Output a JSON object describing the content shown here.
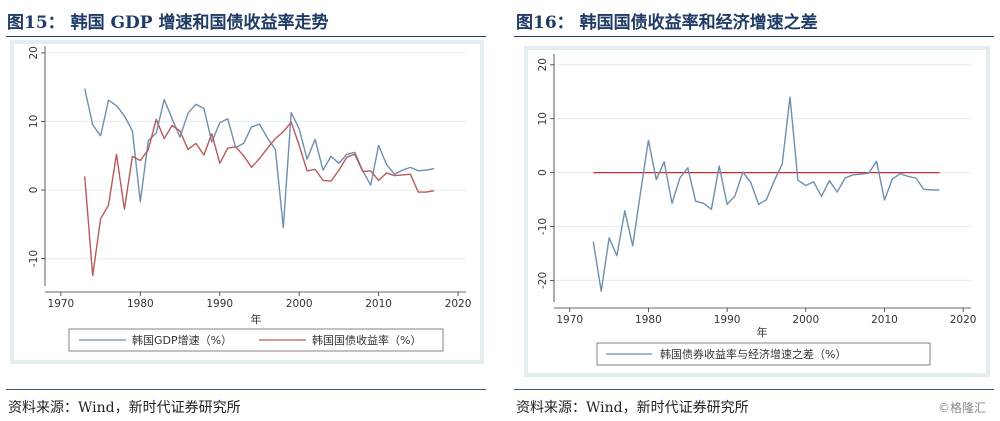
{
  "charts": [
    {
      "title": "图15：  韩国 GDP 增速和国债收益率走势",
      "source": "资料来源：Wind，新时代证券研究所"
    },
    {
      "title": "图16：  韩国国债收益率和经济增速之差",
      "source": "资料来源：Wind，新时代证券研究所"
    }
  ],
  "watermark": "©格隆汇",
  "colors": {
    "blue": "#6e8fb0",
    "red": "#b85a5a",
    "axis": "#333333",
    "frame": "#eaf2f3"
  },
  "chart_data": [
    {
      "type": "line",
      "xlabel": "年",
      "ylabel": "",
      "xlim": [
        1968,
        2021
      ],
      "ylim": [
        -14,
        21
      ],
      "xticks": [
        1970,
        1980,
        1990,
        2000,
        2010,
        2020
      ],
      "yticks": [
        -10,
        0,
        10,
        20
      ],
      "legend_position": "bottom",
      "x": [
        1973,
        1974,
        1975,
        1976,
        1977,
        1978,
        1979,
        1980,
        1981,
        1982,
        1983,
        1984,
        1985,
        1986,
        1987,
        1988,
        1989,
        1990,
        1991,
        1992,
        1993,
        1994,
        1995,
        1996,
        1997,
        1998,
        1999,
        2000,
        2001,
        2002,
        2003,
        2004,
        2005,
        2006,
        2007,
        2008,
        2009,
        2010,
        2011,
        2012,
        2013,
        2014,
        2015,
        2016,
        2017
      ],
      "series": [
        {
          "name": "韩国GDP增速（%）",
          "color": "#6e8fb0",
          "values": [
            14.8,
            9.5,
            7.9,
            13.1,
            12.3,
            10.8,
            8.6,
            -1.7,
            7.2,
            8.3,
            13.2,
            10.4,
            7.7,
            11.2,
            12.5,
            11.9,
            7.0,
            9.8,
            10.4,
            6.2,
            6.8,
            9.2,
            9.6,
            7.6,
            5.9,
            -5.5,
            11.3,
            8.9,
            4.5,
            7.4,
            2.9,
            4.9,
            3.9,
            5.2,
            5.5,
            2.8,
            0.7,
            6.5,
            3.7,
            2.3,
            2.9,
            3.3,
            2.8,
            2.9,
            3.1
          ]
        },
        {
          "name": "韩国国债收益率（%）",
          "color": "#b85a5a",
          "values": [
            2.0,
            -12.5,
            -4.2,
            -2.2,
            5.2,
            -2.8,
            4.9,
            4.3,
            5.9,
            10.3,
            7.5,
            9.4,
            8.6,
            5.9,
            6.8,
            5.1,
            8.2,
            3.9,
            6.1,
            6.3,
            5.0,
            3.3,
            4.6,
            6.1,
            7.5,
            8.5,
            9.9,
            6.5,
            2.8,
            3.0,
            1.4,
            1.3,
            2.9,
            4.8,
            5.2,
            2.7,
            2.8,
            1.4,
            2.5,
            2.1,
            2.2,
            2.3,
            -0.3,
            -0.3,
            -0.1
          ]
        }
      ]
    },
    {
      "type": "line",
      "xlabel": "年",
      "ylabel": "",
      "xlim": [
        1968,
        2021
      ],
      "ylim": [
        -24,
        22
      ],
      "xticks": [
        1970,
        1980,
        1990,
        2000,
        2010,
        2020
      ],
      "yticks": [
        -20,
        -10,
        0,
        10,
        20
      ],
      "legend_position": "bottom",
      "reference_line": {
        "y": 0,
        "color": "#c03030"
      },
      "x": [
        1973,
        1974,
        1975,
        1976,
        1977,
        1978,
        1979,
        1980,
        1981,
        1982,
        1983,
        1984,
        1985,
        1986,
        1987,
        1988,
        1989,
        1990,
        1991,
        1992,
        1993,
        1994,
        1995,
        1996,
        1997,
        1998,
        1999,
        2000,
        2001,
        2002,
        2003,
        2004,
        2005,
        2006,
        2007,
        2008,
        2009,
        2010,
        2011,
        2012,
        2013,
        2014,
        2015,
        2016,
        2017
      ],
      "series": [
        {
          "name": "韩国债券收益率与经济增速之差（%）",
          "color": "#6e8fb0",
          "values": [
            -12.8,
            -22.0,
            -12.1,
            -15.4,
            -7.1,
            -13.6,
            -3.7,
            6.0,
            -1.3,
            2.0,
            -5.7,
            -1.0,
            0.9,
            -5.3,
            -5.7,
            -6.8,
            1.2,
            -5.9,
            -4.3,
            0.1,
            -1.8,
            -5.9,
            -5.0,
            -1.5,
            1.6,
            14.0,
            -1.4,
            -2.4,
            -1.7,
            -4.4,
            -1.5,
            -3.6,
            -1.0,
            -0.4,
            -0.3,
            -0.1,
            2.1,
            -5.1,
            -1.2,
            -0.2,
            -0.7,
            -1.0,
            -3.1,
            -3.2,
            -3.2
          ]
        }
      ]
    }
  ]
}
